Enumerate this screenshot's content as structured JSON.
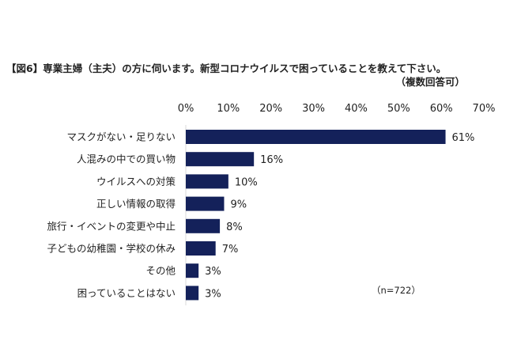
{
  "chart_data": {
    "type": "bar",
    "orientation": "horizontal",
    "title": "【図6】専業主婦（主夫）の方に伺います。新型コロナウイルスで困っていることを教えて下さい。",
    "subtitle": "（複数回答可）",
    "categories": [
      "マスクがない・足りない",
      "人混みの中での買い物",
      "ウイルスへの対策",
      "正しい情報の取得",
      "旅行・イベントの変更や中止",
      "子どもの幼稚園・学校の休み",
      "その他",
      "困っていることはない"
    ],
    "values": [
      61,
      16,
      10,
      9,
      8,
      7,
      3,
      3
    ],
    "value_labels": [
      "61%",
      "16%",
      "10%",
      "9%",
      "8%",
      "7%",
      "3%",
      "3%"
    ],
    "xlim": [
      0,
      70
    ],
    "xticks": [
      0,
      10,
      20,
      30,
      40,
      50,
      60,
      70
    ],
    "xtick_labels": [
      "0%",
      "10%",
      "20%",
      "30%",
      "40%",
      "50%",
      "60%",
      "70%"
    ],
    "axis_position": "top",
    "grid": false,
    "bar_color": "#14215a",
    "annotation": "（n=722）"
  }
}
